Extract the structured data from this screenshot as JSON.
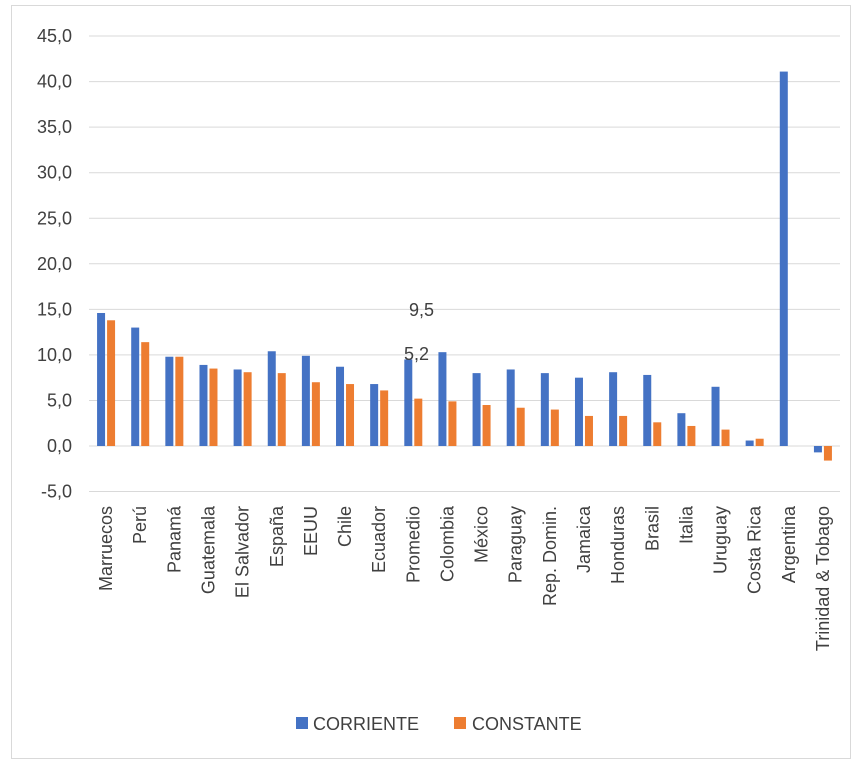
{
  "chart_data": {
    "type": "bar",
    "categories": [
      "Marruecos",
      "Perú",
      "Panamá",
      "Guatemala",
      "El Salvador",
      "España",
      "EEUU",
      "Chile",
      "Ecuador",
      "Promedio",
      "Colombia",
      "México",
      "Paraguay",
      "Rep. Domin.",
      "Jamaica",
      "Honduras",
      "Brasil",
      "Italia",
      "Uruguay",
      "Costa Rica",
      "Argentina",
      "Trinidad & Tobago"
    ],
    "series": [
      {
        "name": "CORRIENTE",
        "color": "#4472C4",
        "values": [
          14.6,
          13.0,
          9.8,
          8.9,
          8.4,
          10.4,
          9.9,
          8.7,
          6.8,
          9.5,
          10.3,
          8.0,
          8.4,
          8.0,
          7.5,
          8.1,
          7.8,
          3.6,
          6.5,
          0.6,
          41.1,
          -0.7
        ]
      },
      {
        "name": "CONSTANTE",
        "color": "#ED7D31",
        "values": [
          13.8,
          11.4,
          9.8,
          8.5,
          8.1,
          8.0,
          7.0,
          6.8,
          6.1,
          5.2,
          4.9,
          4.5,
          4.2,
          4.0,
          3.3,
          3.3,
          2.6,
          2.2,
          1.8,
          0.8,
          0.0,
          -1.6
        ]
      }
    ],
    "y_ticks": [
      "45,0",
      "40,0",
      "35,0",
      "30,0",
      "25,0",
      "20,0",
      "15,0",
      "10,0",
      "5,0",
      "0,0",
      "-5,0"
    ],
    "ylim": [
      -5,
      45
    ],
    "grid": true,
    "legend": "bottom",
    "data_labels": [
      {
        "category": "Promedio",
        "series": "CORRIENTE",
        "text": "9,5"
      },
      {
        "category": "Promedio",
        "series": "CONSTANTE",
        "text": "5,2"
      }
    ]
  }
}
